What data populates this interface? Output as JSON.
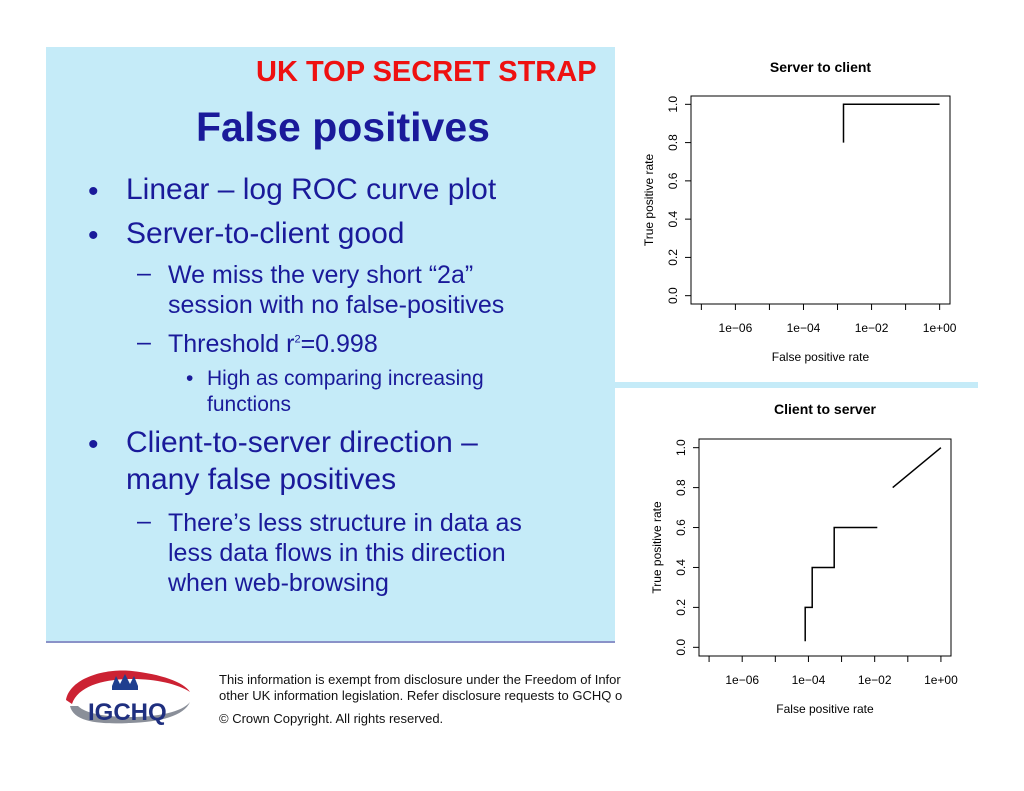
{
  "slide": {
    "classification": "UK TOP SECRET STRAP",
    "title": "False positives",
    "bullets": [
      {
        "level": 1,
        "lines": [
          "Linear – log ROC curve plot"
        ]
      },
      {
        "level": 1,
        "lines": [
          "Server-to-client good"
        ]
      },
      {
        "level": 2,
        "lines": [
          "We miss the very short “2a”",
          "session with no false-positives"
        ]
      },
      {
        "level": 2,
        "threshold": {
          "prefix": "Threshold r",
          "sup": "2",
          "suffix": "=0.998"
        }
      },
      {
        "level": 3,
        "lines": [
          "High as comparing increasing",
          "functions"
        ]
      },
      {
        "level": 1,
        "lines": [
          "Client-to-server direction –",
          "many false positives"
        ]
      },
      {
        "level": 2,
        "lines": [
          "There’s less structure in data as",
          "less data flows in this direction",
          "when web-browsing"
        ]
      }
    ]
  },
  "footer": {
    "logo_text": "IGCHQ",
    "exemption_line1": "This information is exempt from disclosure under the Freedom of Infor",
    "exemption_line2": "other UK information legislation. Refer disclosure requests to GCHQ o",
    "copyright": "© Crown Copyright. All rights reserved."
  },
  "colors": {
    "slide_background": "#c5ebf8",
    "title": "#1a1a9a",
    "classification": "#ee1111",
    "logo_red": "#cc2233",
    "logo_grey": "#8a8f99",
    "logo_crown": "#1f3f8f"
  },
  "chart_data": [
    {
      "type": "line",
      "title": "Server to client",
      "xlabel": "False positive rate",
      "ylabel": "True positive rate",
      "xscale": "log",
      "xlim": [
        1e-07,
        1
      ],
      "ylim": [
        0,
        1
      ],
      "xticks": [
        1e-06,
        0.0001,
        0.01,
        1
      ],
      "xtick_labels": [
        "1e−06",
        "1e−04",
        "1e−02",
        "1e+00"
      ],
      "yticks": [
        0,
        0.2,
        0.4,
        0.6,
        0.8,
        1
      ],
      "ytick_labels": [
        "0.0",
        "0.2",
        "0.4",
        "0.6",
        "0.8",
        "1.0"
      ],
      "grid": false,
      "series": [
        {
          "x": [
            0.0015,
            0.0015,
            1.0
          ],
          "y": [
            0.8,
            1.0,
            1.0
          ]
        }
      ]
    },
    {
      "type": "line",
      "title": "Client to server",
      "xlabel": "False positive rate",
      "ylabel": "True positive rate",
      "xscale": "log",
      "xlim": [
        1e-07,
        1
      ],
      "ylim": [
        0,
        1
      ],
      "xticks": [
        1e-06,
        0.0001,
        0.01,
        1
      ],
      "xtick_labels": [
        "1e−06",
        "1e−04",
        "1e−02",
        "1e+00"
      ],
      "yticks": [
        0,
        0.2,
        0.4,
        0.6,
        0.8,
        1
      ],
      "ytick_labels": [
        "0.0",
        "0.2",
        "0.4",
        "0.6",
        "0.8",
        "1.0"
      ],
      "grid": false,
      "series": [
        {
          "x": [
            8e-05,
            8e-05,
            0.00013,
            0.00013,
            0.0006,
            0.0006,
            0.012
          ],
          "y": [
            0.03,
            0.2,
            0.2,
            0.4,
            0.4,
            0.6,
            0.6
          ]
        },
        {
          "x": [
            0.035,
            1.0
          ],
          "y": [
            0.8,
            1.0
          ]
        }
      ]
    }
  ]
}
